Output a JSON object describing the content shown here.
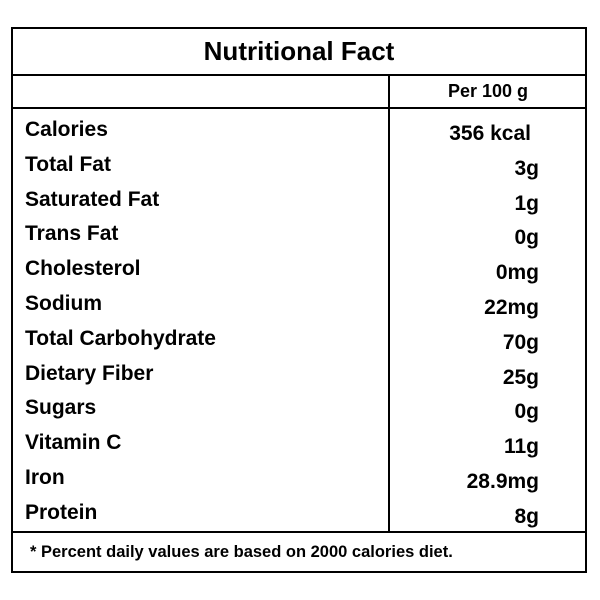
{
  "label": {
    "title": "Nutritional Fact",
    "column_header": "Per 100 g",
    "rows": [
      {
        "name": "Calories",
        "value": "356 kcal"
      },
      {
        "name": "Total Fat",
        "value": "3g"
      },
      {
        "name": "Saturated Fat",
        "value": "1g"
      },
      {
        "name": "Trans Fat",
        "value": "0g"
      },
      {
        "name": "Cholesterol",
        "value": "0mg"
      },
      {
        "name": "Sodium",
        "value": "22mg"
      },
      {
        "name": "Total Carbohydrate",
        "value": "70g"
      },
      {
        "name": "Dietary Fiber",
        "value": "25g"
      },
      {
        "name": "Sugars",
        "value": "0g"
      },
      {
        "name": "Vitamin C",
        "value": "11g"
      },
      {
        "name": "Iron",
        "value": "28.9mg"
      },
      {
        "name": "Protein",
        "value": "8g"
      }
    ],
    "footnote": "*  Percent daily values are based on 2000 calories diet."
  }
}
